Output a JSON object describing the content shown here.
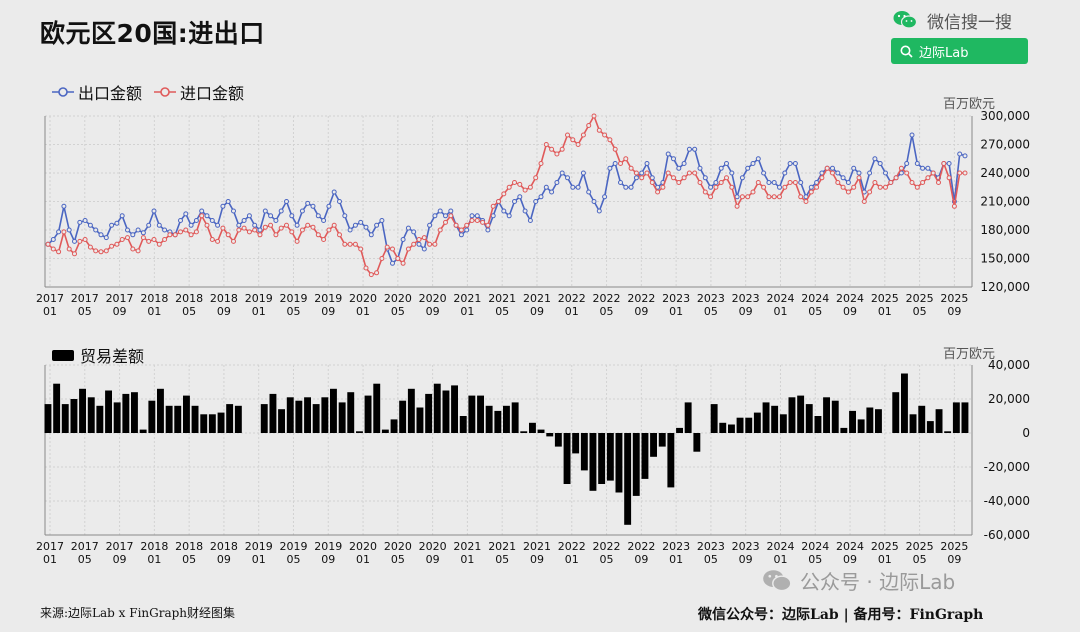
{
  "header": {
    "title": "欧元区20国:进出口",
    "wechat_label": "微信搜一搜",
    "search_label": "边际Lab"
  },
  "chart_data": [
    {
      "type": "line",
      "unit": "百万欧元",
      "ylim": [
        120000,
        300000
      ],
      "yticks": [
        120000,
        150000,
        180000,
        210000,
        240000,
        270000,
        300000
      ],
      "ytick_labels": [
        "120,000",
        "150,000",
        "180,000",
        "210,000",
        "240,000",
        "270,000",
        "300,000"
      ],
      "xtick_labels": [
        "2017 01",
        "2017 05",
        "2017 09",
        "2018 01",
        "2018 05",
        "2018 09",
        "2019 01",
        "2019 05",
        "2019 09",
        "2020 01",
        "2020 05",
        "2020 09",
        "2021 01",
        "2021 05",
        "2021 09",
        "2022 01",
        "2022 05",
        "2022 09",
        "2023 01",
        "2023 05",
        "2023 09",
        "2024 01",
        "2024 05",
        "2024 09",
        "2025 01",
        "2025 05",
        "2025 09"
      ],
      "x_start": "2017-01",
      "x_end": "2025-10",
      "series": [
        {
          "name": "出口金额",
          "color": "#4b66c2",
          "values": [
            165000,
            170000,
            178000,
            205000,
            180000,
            168000,
            188000,
            190000,
            185000,
            180000,
            175000,
            172000,
            185000,
            187000,
            195000,
            180000,
            175000,
            180000,
            177000,
            185000,
            200000,
            185000,
            180000,
            178000,
            175000,
            190000,
            197000,
            185000,
            190000,
            200000,
            195000,
            190000,
            185000,
            205000,
            210000,
            200000,
            185000,
            190000,
            195000,
            185000,
            180000,
            200000,
            195000,
            190000,
            200000,
            210000,
            195000,
            185000,
            200000,
            208000,
            205000,
            195000,
            190000,
            205000,
            220000,
            210000,
            195000,
            180000,
            185000,
            188000,
            183000,
            175000,
            185000,
            190000,
            160000,
            145000,
            150000,
            170000,
            182000,
            178000,
            165000,
            160000,
            185000,
            195000,
            200000,
            195000,
            200000,
            185000,
            175000,
            180000,
            195000,
            195000,
            190000,
            180000,
            195000,
            210000,
            200000,
            195000,
            210000,
            215000,
            200000,
            190000,
            210000,
            215000,
            225000,
            220000,
            230000,
            240000,
            235000,
            225000,
            225000,
            240000,
            220000,
            210000,
            200000,
            215000,
            245000,
            250000,
            230000,
            225000,
            225000,
            235000,
            240000,
            250000,
            235000,
            225000,
            230000,
            260000,
            255000,
            245000,
            250000,
            265000,
            265000,
            245000,
            235000,
            225000,
            230000,
            245000,
            250000,
            240000,
            215000,
            235000,
            245000,
            250000,
            255000,
            240000,
            230000,
            230000,
            225000,
            240000,
            250000,
            250000,
            230000,
            215000,
            225000,
            230000,
            240000,
            245000,
            245000,
            240000,
            235000,
            230000,
            245000,
            240000,
            220000,
            240000,
            255000,
            250000,
            240000,
            230000,
            235000,
            240000,
            250000,
            280000,
            250000,
            245000,
            245000,
            240000,
            235000,
            250000,
            250000,
            210000,
            260000,
            258000
          ]
        },
        {
          "name": "进口金额",
          "color": "#e05a5a",
          "values": [
            165000,
            160000,
            157000,
            178000,
            160000,
            155000,
            168000,
            170000,
            162000,
            158000,
            157000,
            158000,
            163000,
            165000,
            170000,
            172000,
            160000,
            158000,
            172000,
            168000,
            170000,
            165000,
            170000,
            175000,
            175000,
            178000,
            180000,
            175000,
            178000,
            195000,
            185000,
            170000,
            168000,
            182000,
            175000,
            168000,
            180000,
            182000,
            178000,
            180000,
            175000,
            183000,
            185000,
            175000,
            182000,
            185000,
            178000,
            168000,
            180000,
            185000,
            183000,
            175000,
            170000,
            180000,
            185000,
            175000,
            165000,
            165000,
            165000,
            160000,
            140000,
            133000,
            135000,
            150000,
            162000,
            160000,
            150000,
            145000,
            160000,
            165000,
            170000,
            172000,
            165000,
            165000,
            180000,
            188000,
            195000,
            185000,
            180000,
            185000,
            190000,
            190000,
            188000,
            185000,
            205000,
            210000,
            218000,
            225000,
            230000,
            228000,
            222000,
            225000,
            235000,
            250000,
            270000,
            265000,
            260000,
            265000,
            280000,
            275000,
            270000,
            280000,
            290000,
            300000,
            285000,
            280000,
            275000,
            265000,
            250000,
            255000,
            245000,
            240000,
            235000,
            240000,
            230000,
            220000,
            225000,
            240000,
            235000,
            230000,
            235000,
            240000,
            240000,
            230000,
            220000,
            215000,
            225000,
            230000,
            235000,
            225000,
            205000,
            215000,
            215000,
            220000,
            230000,
            225000,
            215000,
            215000,
            215000,
            225000,
            230000,
            230000,
            215000,
            210000,
            220000,
            225000,
            235000,
            245000,
            240000,
            230000,
            225000,
            220000,
            225000,
            235000,
            210000,
            220000,
            230000,
            225000,
            225000,
            230000,
            235000,
            245000,
            240000,
            230000,
            225000,
            230000,
            235000,
            240000,
            230000,
            250000,
            235000,
            205000,
            240000,
            240000
          ]
        }
      ]
    },
    {
      "type": "bar",
      "unit": "百万欧元",
      "ylim": [
        -60000,
        40000
      ],
      "yticks": [
        -60000,
        -40000,
        -20000,
        0,
        20000,
        40000
      ],
      "ytick_labels": [
        "-60,000",
        "-40,000",
        "-20,000",
        "0",
        "20,000",
        "40,000"
      ],
      "xtick_labels": [
        "2017 01",
        "2017 05",
        "2017 09",
        "2018 01",
        "2018 05",
        "2018 09",
        "2019 01",
        "2019 05",
        "2019 09",
        "2020 01",
        "2020 05",
        "2020 09",
        "2021 01",
        "2021 05",
        "2021 09",
        "2022 01",
        "2022 05",
        "2022 09",
        "2023 01",
        "2023 05",
        "2023 09",
        "2024 01",
        "2024 05",
        "2024 09",
        "2025 01",
        "2025 05",
        "2025 09"
      ],
      "series": [
        {
          "name": "贸易差额",
          "color": "#000000",
          "values": [
            17000,
            29000,
            17000,
            20000,
            26000,
            21000,
            16000,
            25000,
            18000,
            23000,
            24000,
            2000,
            19000,
            26000,
            16000,
            16000,
            22000,
            16000,
            11000,
            11000,
            12000,
            17000,
            16000,
            0,
            0,
            17000,
            23000,
            14000,
            21000,
            19000,
            21000,
            17000,
            21000,
            26000,
            18000,
            24000,
            1000,
            22000,
            29000,
            2000,
            8000,
            19000,
            26000,
            15000,
            23000,
            29000,
            25000,
            28000,
            10000,
            22000,
            22000,
            16000,
            13000,
            16000,
            18000,
            1000,
            6000,
            2000,
            -2000,
            -8000,
            -30000,
            -12000,
            -22000,
            -34000,
            -30000,
            -28000,
            -35000,
            -54000,
            -37000,
            -27000,
            -14000,
            -8000,
            -32000,
            3000,
            18000,
            -11000,
            0,
            17000,
            6000,
            5000,
            9000,
            9000,
            12000,
            18000,
            16000,
            11000,
            21000,
            22000,
            17000,
            10000,
            21000,
            19000,
            3000,
            13000,
            8000,
            15000,
            14000,
            0,
            24000,
            35000,
            11000,
            16000,
            7000,
            14000,
            1000,
            18000,
            18000
          ]
        }
      ]
    }
  ],
  "footer": {
    "source": "来源:边际Lab x FinGraph财经图集",
    "right": "微信公众号：边际Lab  |  备用号：FinGraph",
    "watermark": "公众号 · 边际Lab"
  }
}
